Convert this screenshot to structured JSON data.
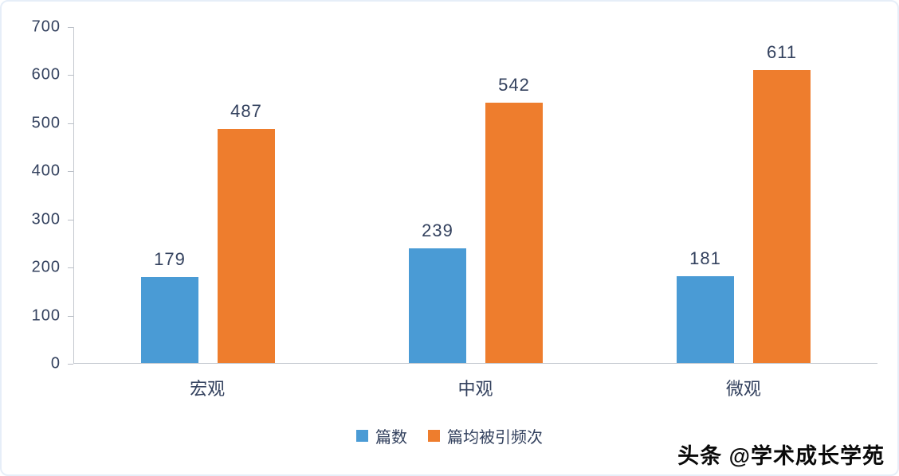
{
  "chart_data": {
    "type": "bar",
    "categories": [
      "宏观",
      "中观",
      "微观"
    ],
    "series": [
      {
        "name": "篇数",
        "color": "#4a9bd5",
        "values": [
          179,
          239,
          181
        ]
      },
      {
        "name": "篇均被引频次",
        "color": "#ee7d2d",
        "values": [
          487,
          542,
          611
        ]
      }
    ],
    "title": "",
    "xlabel": "",
    "ylabel": "",
    "ylim": [
      0,
      700
    ],
    "yticks": [
      0,
      100,
      200,
      300,
      400,
      500,
      600,
      700
    ],
    "grid": false,
    "legend_position": "bottom"
  },
  "watermark": {
    "text": "头条 @学术成长学苑"
  },
  "colors": {
    "axis_text": "#33415e",
    "axis_line": "#c3c8cf",
    "bar_blue": "#4a9bd5",
    "bar_orange": "#ee7d2d",
    "watermark_text": "#0a0a0a"
  }
}
